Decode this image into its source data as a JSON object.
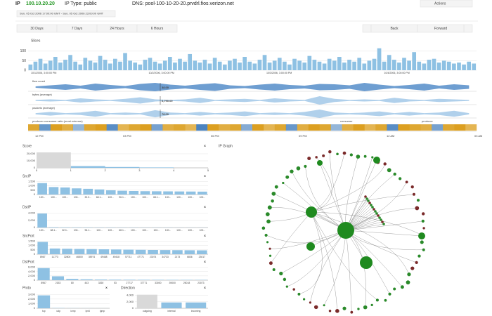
{
  "header": {
    "ip_label": "IP",
    "ip": "100.10.20.20",
    "ip_type": "IP Type: public",
    "dns": "DNS: pool-100-10-20-20.prvdrl.fios.verizon.net",
    "actions": "Actions"
  },
  "time_range": "Sun, 05 Oct 2006 17:00:00 GMT - Sun, 05 Oct 2006 23:00:00 GMT",
  "range_buttons": [
    "30 Days",
    "7 Days",
    "24 Hours",
    "6 Hours"
  ],
  "nav_buttons": [
    "Back",
    "Forward"
  ],
  "slices": {
    "title": "Slices",
    "ylim": [
      0,
      140
    ],
    "yticks": [
      0,
      50,
      100
    ],
    "xlabels": [
      "10/1/2006, 3:00:00 PM",
      "10/2/2006, 3:00:00 PM",
      "10/3/2006, 3:00:00 PM",
      "10/4/2006, 3:00:00 PM"
    ],
    "values": [
      30,
      45,
      60,
      35,
      50,
      70,
      40,
      55,
      80,
      45,
      30,
      65,
      50,
      40,
      75,
      55,
      35,
      60,
      45,
      90,
      50,
      40,
      30,
      55,
      65,
      45,
      35,
      50,
      70,
      40,
      60,
      45,
      85,
      50,
      40,
      55,
      35,
      65,
      45,
      30,
      50,
      60,
      40,
      70,
      45,
      35,
      55,
      80,
      40,
      50,
      65,
      45,
      30,
      60,
      50,
      40,
      75,
      55,
      45,
      35,
      60,
      50,
      70,
      40,
      55,
      45,
      65,
      35,
      50,
      60,
      115,
      45,
      80,
      55,
      40,
      65,
      50,
      95,
      45,
      35,
      55,
      60,
      40,
      50,
      45,
      35,
      40,
      30,
      45,
      35
    ]
  },
  "rows": [
    {
      "title": "flow count",
      "value_label": "38.00",
      "values": [
        2,
        5,
        8,
        4,
        10,
        6,
        3,
        9,
        12,
        7,
        4,
        8,
        11,
        5,
        3,
        7,
        10,
        6,
        4,
        9,
        8,
        5,
        12,
        7,
        3,
        6,
        10,
        4,
        8,
        5
      ]
    },
    {
      "title": "bytes (average)",
      "value_label": "6,790.00",
      "values": [
        1,
        2,
        1,
        4,
        2,
        1,
        3,
        6,
        2,
        1,
        2,
        5,
        1,
        2,
        3,
        1,
        4,
        2,
        1,
        8,
        3,
        1,
        2,
        1,
        5,
        2,
        1,
        3,
        2,
        1
      ]
    },
    {
      "title": "packets (average)",
      "value_label": "78.00",
      "values": [
        1,
        3,
        1,
        2,
        5,
        1,
        2,
        1,
        6,
        2,
        1,
        3,
        1,
        2,
        4,
        1,
        2,
        1,
        3,
        7,
        2,
        1,
        2,
        4,
        1,
        3,
        1,
        2,
        5,
        1
      ]
    },
    {
      "title": "producer-consumer ratio (most extreme)",
      "left_label": "consumer",
      "right_label": "producer",
      "values": [
        0.8,
        -0.6,
        0.9,
        0.7,
        -0.3,
        0.8,
        0.9,
        -0.7,
        0.6,
        0.8,
        0.9,
        -0.5,
        0.7,
        0.8,
        0.6,
        -0.8,
        0.9,
        0.7,
        0.8,
        -0.4,
        0.9,
        0.6,
        0.8,
        -0.6,
        0.7,
        0.9,
        0.8,
        -0.3,
        0.7,
        0.9,
        0.6,
        0.8,
        -0.7,
        0.9,
        0.8,
        0.7,
        -0.5,
        0.8,
        0.9,
        0.6
      ]
    }
  ],
  "time_axis": [
    "12 PM",
    "03 PM",
    "06 PM",
    "09 PM",
    "12 AM",
    "03 AM"
  ],
  "score": {
    "title": "Score",
    "bins": [
      0,
      1,
      2,
      3,
      4,
      5
    ],
    "counts": [
      22000,
      2500,
      1200,
      600,
      0
    ],
    "xlim": [
      0,
      5
    ],
    "xticks": [
      0,
      1,
      2,
      3,
      4,
      5
    ],
    "ylim": [
      0,
      25000
    ],
    "yticks": [
      0,
      {
        "value": 10000,
        "label": "10,000"
      },
      {
        "value": 20000,
        "label": "20,000"
      }
    ]
  },
  "bar_panels": [
    {
      "title": "SrcIP",
      "categories": [
        "100...",
        "100...",
        "100...",
        "100...",
        "32.0...",
        "68.1...",
        "100...",
        "96.1...",
        "100...",
        "100...",
        "68.1...",
        "100...",
        "100...",
        "100...",
        "100..."
      ],
      "values": [
        1300,
        850,
        800,
        700,
        650,
        580,
        480,
        430,
        400,
        380,
        370,
        360,
        350,
        340,
        330
      ],
      "ylim": [
        0,
        1600
      ],
      "yticks": [
        0,
        500,
        {
          "value": 1000,
          "label": "1,000"
        },
        {
          "value": 1500,
          "label": "1,500"
        }
      ]
    },
    {
      "title": "DstIP",
      "categories": [
        "100...",
        "68.1...",
        "32.0...",
        "100...",
        "96.1...",
        "100...",
        "100...",
        "68.1...",
        "100...",
        "100...",
        "100...",
        "100...",
        "100...",
        "100...",
        "100..."
      ],
      "values": [
        3900,
        120,
        90,
        80,
        70,
        60,
        60,
        50,
        50,
        40,
        40,
        40,
        30,
        30,
        30
      ],
      "ylim": [
        0,
        4500
      ],
      "yticks": [
        0,
        {
          "value": 2000,
          "label": "2,000"
        },
        {
          "value": 4000,
          "label": "4,000"
        }
      ]
    },
    {
      "title": "SrcPort",
      "categories": [
        "8967",
        "11773",
        "32800",
        "46800",
        "35974",
        "49468",
        "49418",
        "57711",
        "47771",
        "23074",
        "34733",
        "2173",
        "6836",
        "23017"
      ],
      "values": [
        1400,
        650,
        620,
        600,
        580,
        560,
        540,
        520,
        500,
        480,
        470,
        460,
        450,
        440
      ],
      "ylim": [
        0,
        1600
      ],
      "yticks": [
        0,
        500,
        {
          "value": 1000,
          "label": "1,000"
        },
        {
          "value": 1500,
          "label": "1,500"
        }
      ]
    },
    {
      "title": "DstPort",
      "categories": [
        "8967",
        "2153",
        "80",
        "443",
        "3260",
        "53",
        "27717",
        "37771",
        "33000",
        "39000",
        "25018",
        "23073"
      ],
      "values": [
        5600,
        1800,
        600,
        400,
        300,
        250,
        220,
        200,
        180,
        160,
        150,
        140
      ],
      "ylim": [
        0,
        6500
      ],
      "yticks": [
        0,
        {
          "value": 2000,
          "label": "2,000"
        },
        {
          "value": 4000,
          "label": "4,000"
        },
        {
          "value": 6000,
          "label": "6,000"
        }
      ]
    }
  ],
  "proto": {
    "title": "Proto",
    "categories": [
      "tcp",
      "udp",
      "icmp",
      "ipv6",
      "igmp"
    ],
    "values": [
      2800,
      60,
      30,
      20,
      10
    ],
    "ylim": [
      0,
      3500
    ],
    "yticks": [
      0,
      {
        "value": 1000,
        "label": "1,000"
      },
      {
        "value": 2000,
        "label": "2,000"
      },
      {
        "value": 3000,
        "label": "3,000"
      }
    ]
  },
  "direction": {
    "title": "Direction",
    "categories": [
      "outgoing",
      "internal",
      "incoming"
    ],
    "values": [
      4200,
      1800,
      1800
    ],
    "ylim": [
      0,
      5000
    ],
    "yticks": [
      0,
      {
        "value": 2000,
        "label": "2,000"
      },
      {
        "value": 4000,
        "label": "4,000"
      }
    ]
  },
  "ip_graph": {
    "title": "IP Graph"
  }
}
